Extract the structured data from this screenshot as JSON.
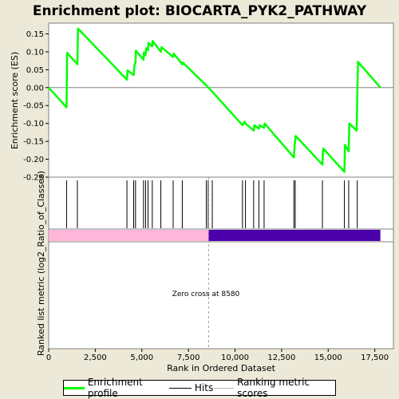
{
  "chart_data": {
    "type": "line",
    "title": "Enrichment plot: BIOCARTA_PYK2_PATHWAY",
    "ylabel": "Enrichment score (ES)",
    "xlabel": "Rank in Ordered Dataset",
    "lower_ylabel": "Ranked list metric (log2_Ratio_of_Classes)",
    "annotation": "Zero cross at 8580",
    "zero_cross": 8580,
    "xlim": [
      0,
      18500
    ],
    "ylim": [
      -0.25,
      0.18
    ],
    "x_ticks": [
      0,
      2500,
      5000,
      7500,
      10000,
      12500,
      15000,
      17500
    ],
    "x_tick_labels": [
      "0",
      "2,500",
      "5,000",
      "7,500",
      "10,000",
      "12,500",
      "15,000",
      "17,500"
    ],
    "y_ticks": [
      0.15,
      0.1,
      0.05,
      0.0,
      -0.05,
      -0.1,
      -0.15,
      -0.2,
      -0.25
    ],
    "y_tick_labels": [
      "0.15",
      "0.10",
      "0.05",
      "0.00",
      "-0.05",
      "-0.10",
      "-0.15",
      "-0.20",
      "-0.25"
    ],
    "grid": false,
    "series": [
      {
        "name": "Enrichment profile",
        "color": "#00ff00",
        "x": [
          0,
          960,
          990,
          1540,
          1570,
          4200,
          4230,
          4560,
          4600,
          4660,
          4680,
          5090,
          5110,
          5200,
          5230,
          5330,
          5350,
          5560,
          5580,
          6020,
          6050,
          6680,
          6710,
          7170,
          7200,
          8580,
          10400,
          10520,
          10560,
          11000,
          11040,
          11280,
          11320,
          11560,
          11590,
          13160,
          13200,
          13260,
          14690,
          14730,
          15870,
          15900,
          16100,
          16130,
          16530,
          16560,
          16600,
          17800
        ],
        "y": [
          0.0,
          -0.055,
          0.097,
          0.065,
          0.165,
          0.022,
          0.048,
          0.035,
          0.06,
          0.072,
          0.103,
          0.078,
          0.098,
          0.09,
          0.11,
          0.105,
          0.125,
          0.115,
          0.13,
          0.1,
          0.113,
          0.085,
          0.095,
          0.065,
          0.07,
          0.0,
          -0.105,
          -0.095,
          -0.1,
          -0.12,
          -0.105,
          -0.115,
          -0.105,
          -0.112,
          -0.1,
          -0.195,
          -0.16,
          -0.135,
          -0.215,
          -0.17,
          -0.235,
          -0.16,
          -0.178,
          -0.1,
          -0.12,
          -0.025,
          0.072,
          0.0
        ]
      }
    ],
    "hits": [
      960,
      1540,
      4200,
      4560,
      4660,
      5090,
      5200,
      5330,
      5560,
      6020,
      6680,
      7170,
      8460,
      8560,
      8780,
      10400,
      10560,
      11000,
      11280,
      11560,
      13160,
      13230,
      14690,
      15870,
      16100,
      16560
    ],
    "hits_color": "#000000",
    "metric_bar": {
      "positive_color": "#ffb6d9",
      "negative_color": "#4b00aa",
      "start": 0,
      "zero_cross": 8580,
      "end": 17800
    },
    "legend": [
      {
        "label": "Enrichment profile",
        "color": "#00ff00"
      },
      {
        "label": "Hits",
        "color": "#000000"
      },
      {
        "label": "Ranking metric scores",
        "color": "#bbbbbb"
      }
    ],
    "legend_position": "bottom"
  }
}
